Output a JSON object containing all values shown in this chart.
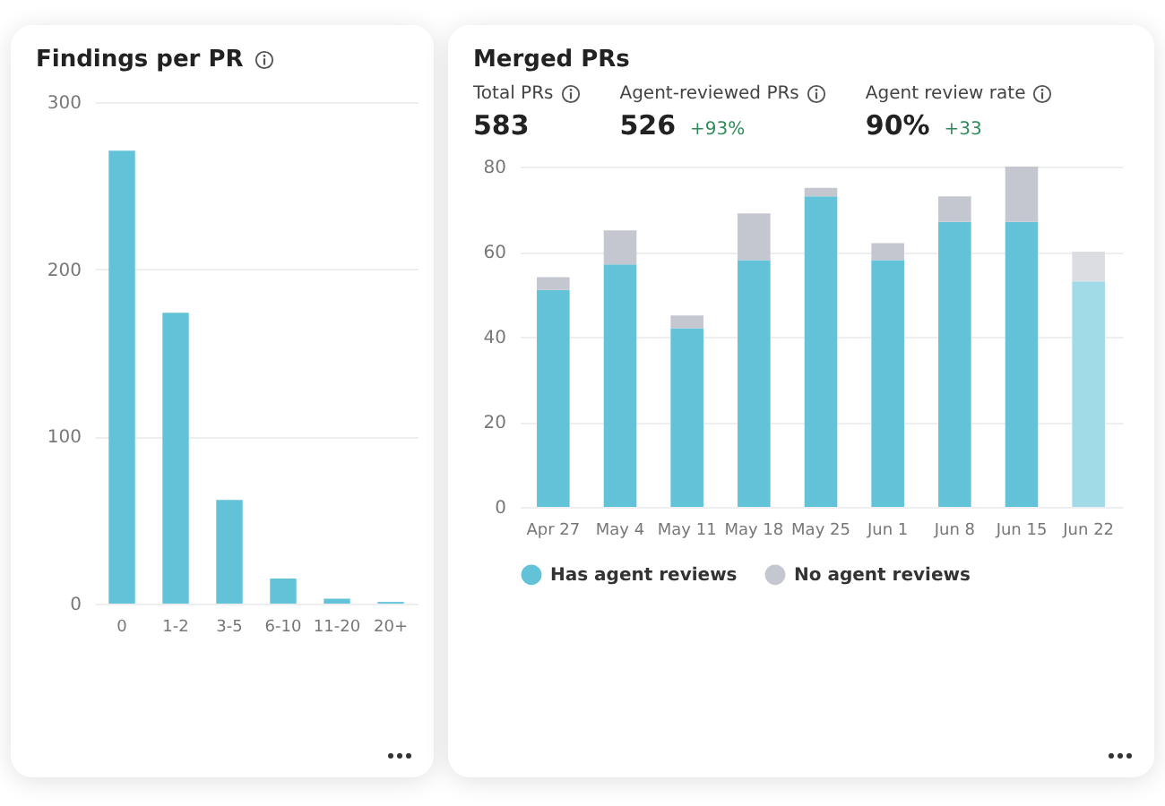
{
  "chart_data": [
    {
      "type": "bar",
      "title": "Findings per PR",
      "categories": [
        "0",
        "1-2",
        "3-5",
        "6-10",
        "11-20",
        "20+"
      ],
      "values": [
        271,
        174,
        62,
        15,
        3,
        1
      ],
      "color": "#62c3d8",
      "ylim": [
        0,
        300
      ],
      "yticks": [
        0,
        100,
        200,
        300
      ],
      "grid": "y"
    },
    {
      "type": "bar",
      "title": "Merged PRs",
      "annotations": [
        "Total PRs",
        "583",
        "Agent-reviewed PRs",
        "526",
        "+93%",
        "Agent review rate",
        "90%",
        "+33"
      ],
      "categories": [
        "Apr 27",
        "May 4",
        "May 11",
        "May 18",
        "May 25",
        "Jun 1",
        "Jun 8",
        "Jun 15",
        "Jun 22"
      ],
      "stacked": true,
      "series": [
        {
          "name": "Has agent reviews",
          "color": "#62c3d8",
          "colors": [
            "#62c3d8",
            "#62c3d8",
            "#62c3d8",
            "#62c3d8",
            "#62c3d8",
            "#62c3d8",
            "#62c3d8",
            "#62c3d8",
            "#a1dbe8"
          ],
          "values": [
            51,
            57,
            42,
            58,
            73,
            58,
            67,
            67,
            53
          ]
        },
        {
          "name": "No agent reviews",
          "color": "#c4c6d0",
          "colors": [
            "#c4c6d0",
            "#c4c6d0",
            "#c4c6d0",
            "#c4c6d0",
            "#c4c6d0",
            "#c4c6d0",
            "#c4c6d0",
            "#c4c6d0",
            "#dcdde3"
          ],
          "values": [
            3,
            8,
            3,
            11,
            2,
            4,
            6,
            13,
            7
          ]
        }
      ],
      "ylim": [
        0,
        80
      ],
      "yticks": [
        0,
        20,
        40,
        60,
        80
      ],
      "grid": "y",
      "legend": "bottom"
    }
  ]
}
